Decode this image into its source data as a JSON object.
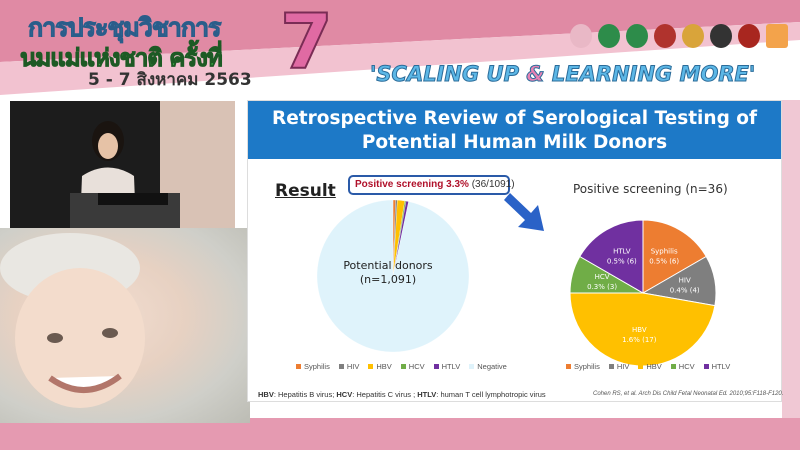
{
  "banner": {
    "line1": "การประชุมวิชาการ",
    "line2": "นมแม่แห่งชาติ ครั้งที่",
    "date": "5 - 7 สิงหาคม 2563",
    "number": "7",
    "slogan_a": "'SCALING UP ",
    "slogan_amp": "&",
    "slogan_b": " LEARNING MORE'",
    "logos": [
      "logo-1",
      "logo-2",
      "logo-3",
      "logo-4",
      "logo-5",
      "logo-6",
      "logo-7",
      "logo-sss"
    ]
  },
  "slide": {
    "title_line1": "Retrospective Review of Serological Testing of",
    "title_line2": "Potential Human Milk Donors",
    "result": "Result",
    "callout_bold": "Positive screening 3.3%",
    "callout_rest": " (36/1091)",
    "footnote": {
      "a": "HBV",
      "a_t": ": Hepatitis B virus; ",
      "b": "HCV",
      "b_t": ": Hepatitis C virus ; ",
      "c": "HTLV",
      "c_t": ": human T cell lymphotropic virus"
    },
    "citation": "Cohen RS, et al. Arch Dis Child Fetal Neonatal Ed. 2010;95:F118-F120."
  },
  "chart_data": [
    {
      "type": "pie",
      "title": "",
      "center_label": [
        "Potential donors",
        "(n=1,091)"
      ],
      "categories": [
        "Syphilis",
        "HIV",
        "HBV",
        "HCV",
        "HTLV",
        "Negative"
      ],
      "values": [
        6,
        4,
        17,
        3,
        6,
        1055
      ],
      "colors": [
        "#ed7d31",
        "#7f7f7f",
        "#ffc000",
        "#70ad47",
        "#7030a0",
        "#dff3fb"
      ],
      "legend": "bottom"
    },
    {
      "type": "pie",
      "title": "Positive screening (n=36)",
      "categories": [
        "Syphilis",
        "HIV",
        "HBV",
        "HCV",
        "HTLV"
      ],
      "values": [
        6,
        4,
        17,
        3,
        6
      ],
      "labels": [
        "0.5% (6)",
        "0.4% (4)",
        "1.6% (17)",
        "0.3% (3)",
        "0.5% (6)"
      ],
      "colors": [
        "#ed7d31",
        "#7f7f7f",
        "#ffc000",
        "#70ad47",
        "#7030a0"
      ],
      "legend": "bottom"
    }
  ]
}
